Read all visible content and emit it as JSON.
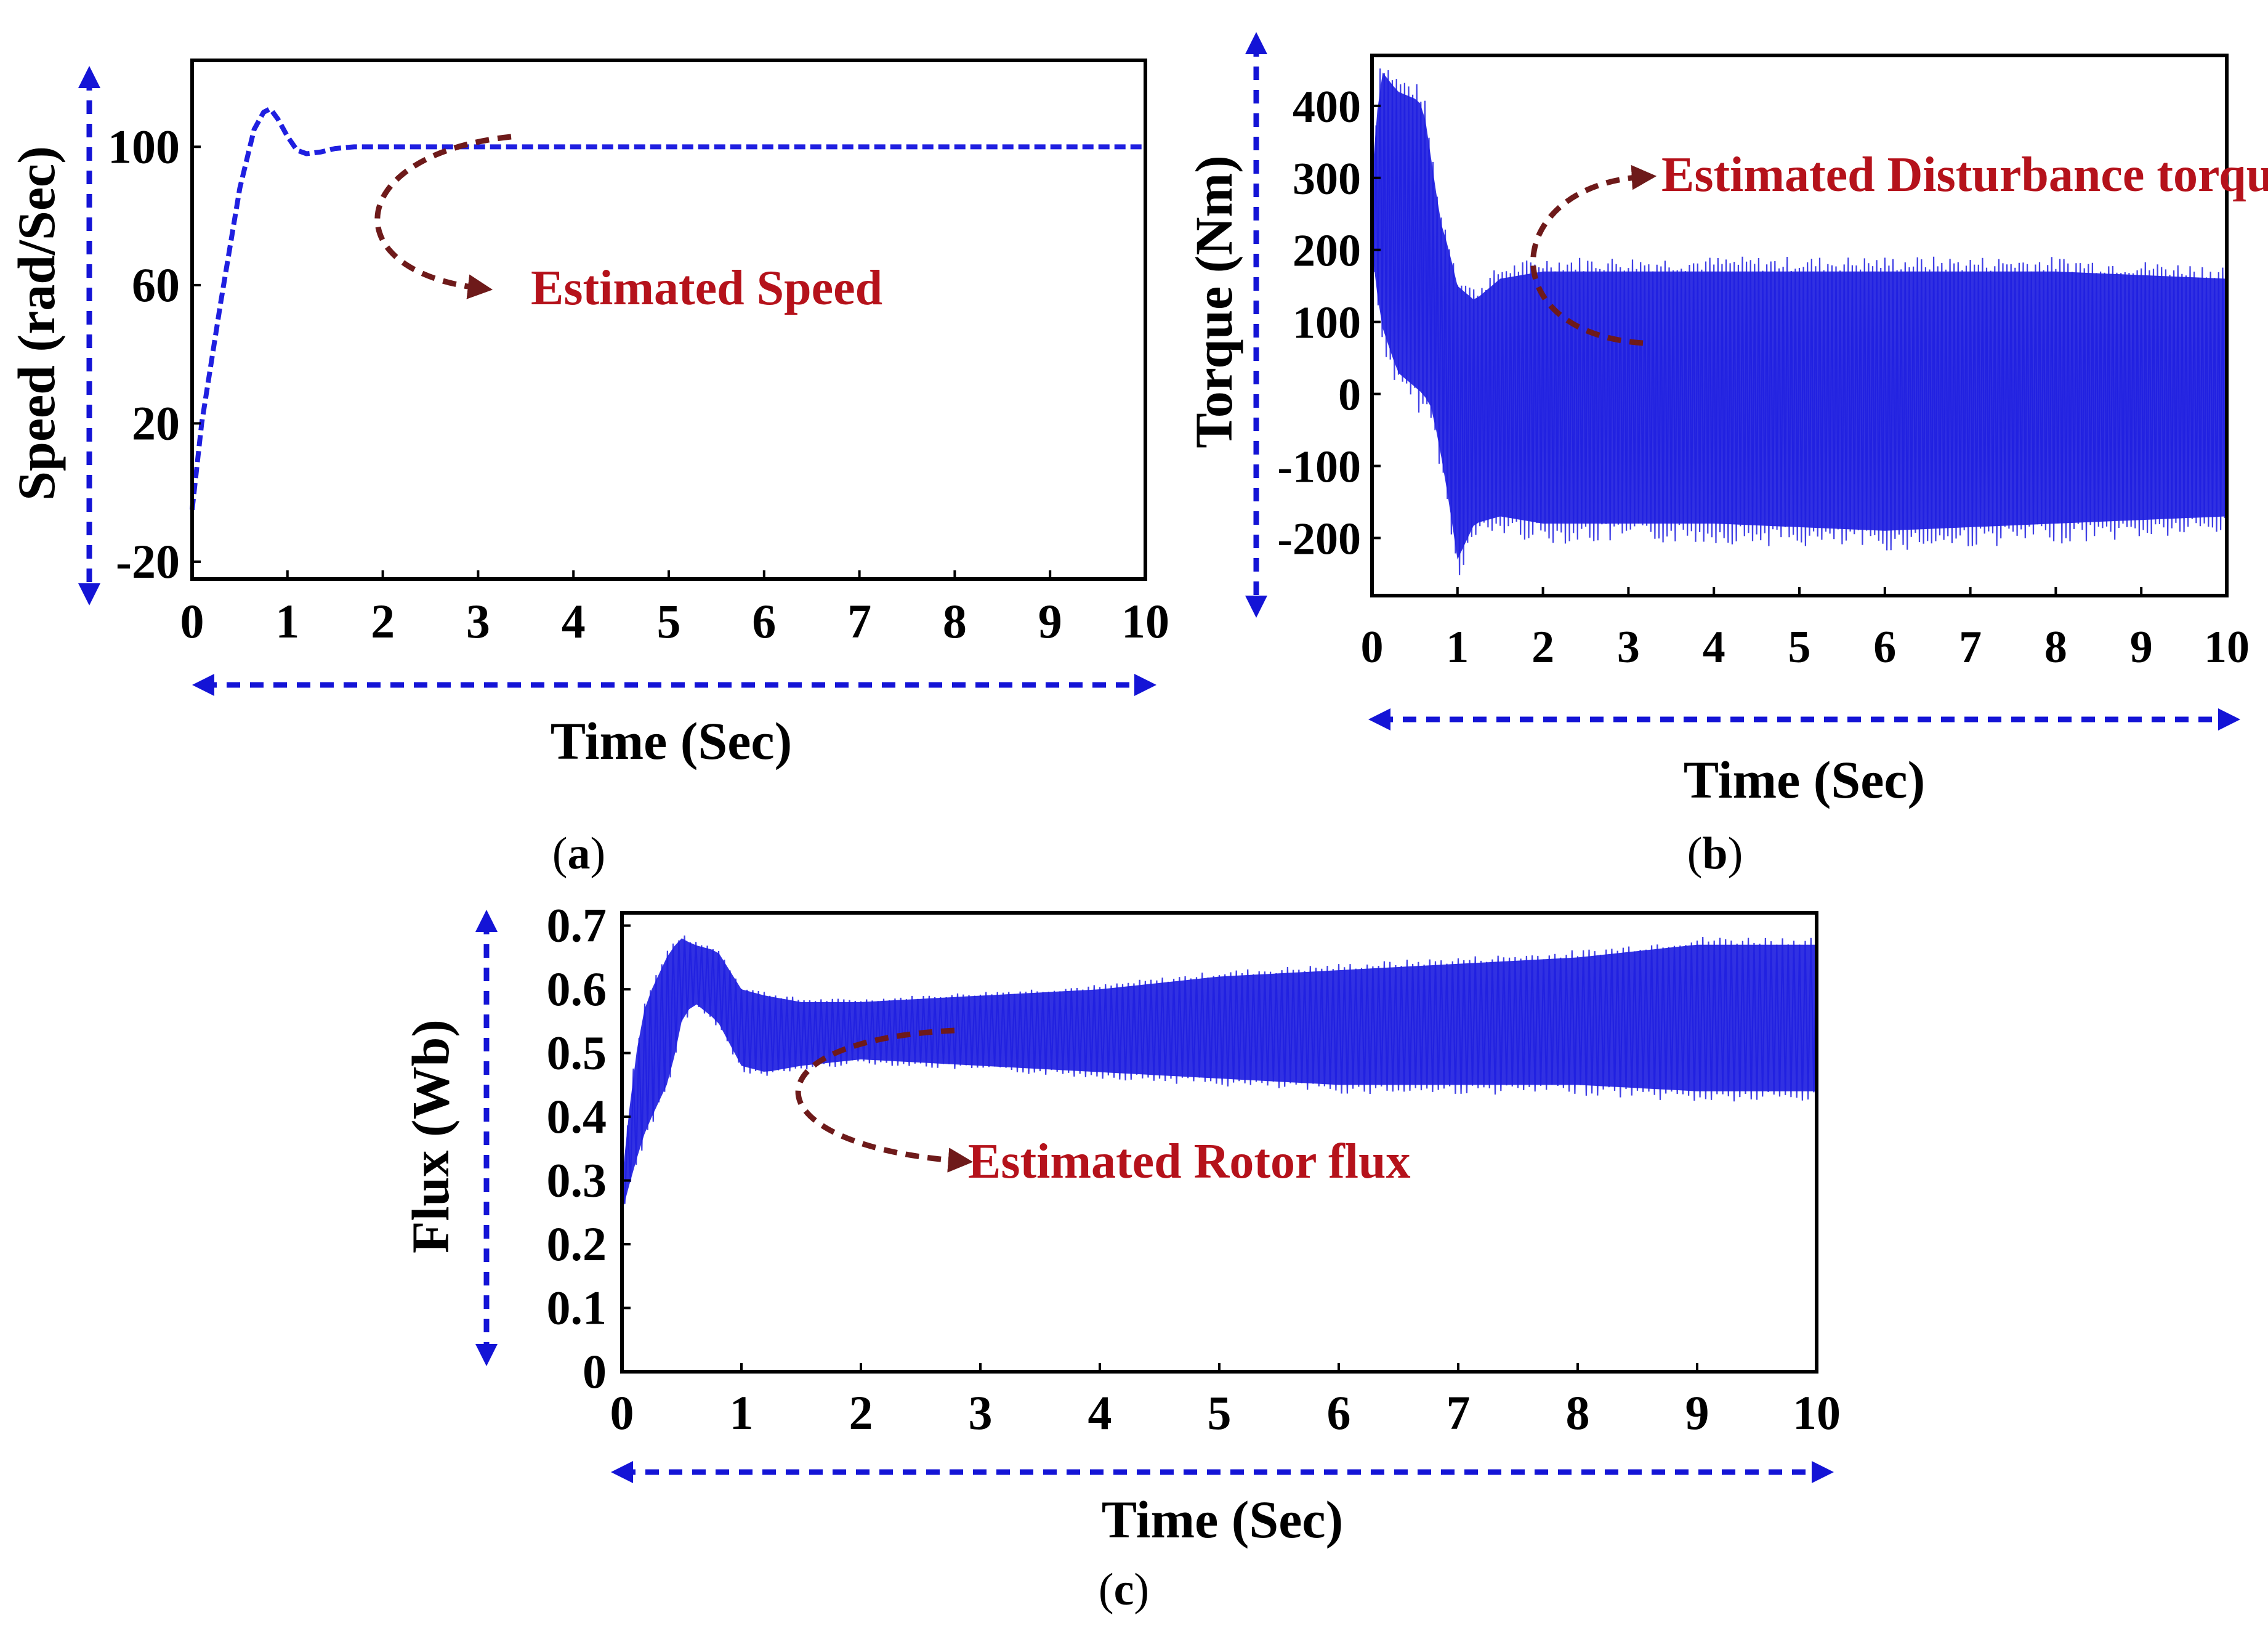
{
  "colors": {
    "series": "#1f1fe0",
    "arrow": "#1414d6",
    "annotation_text": "#b5121b",
    "annotation_curve": "#6e1a1a",
    "frame": "#000000"
  },
  "chart_data": [
    {
      "id": "a",
      "type": "line",
      "panel_label": "a",
      "ylabel": "Speed (rad/Sec)",
      "xlabel": "Time (Sec)",
      "xlim": [
        0,
        10
      ],
      "ylim": [
        -25,
        125
      ],
      "x_ticks": [
        0,
        1,
        2,
        3,
        4,
        5,
        6,
        7,
        8,
        9,
        10
      ],
      "y_ticks": [
        -20,
        20,
        60,
        100
      ],
      "annotation": "Estimated Speed",
      "series": [
        {
          "name": "Estimated Speed",
          "style": "dashed",
          "x": [
            0,
            0.1,
            0.3,
            0.5,
            0.65,
            0.75,
            0.82,
            0.9,
            1.0,
            1.1,
            1.2,
            1.35,
            1.5,
            1.7,
            2.0,
            3.0,
            4.0,
            5.0,
            6.0,
            7.0,
            8.0,
            9.0,
            10.0
          ],
          "y": [
            -5,
            20,
            55,
            88,
            105,
            110,
            111,
            108,
            103,
            99,
            98,
            98.5,
            99.5,
            100,
            100,
            100,
            100,
            100,
            100,
            100,
            100,
            100,
            100
          ]
        }
      ]
    },
    {
      "id": "b",
      "type": "line",
      "panel_label": "b",
      "ylabel": "Torque (Nm)",
      "xlabel": "Time (Sec)",
      "xlim": [
        0,
        10
      ],
      "ylim": [
        -280,
        470
      ],
      "x_ticks": [
        0,
        1,
        2,
        3,
        4,
        5,
        6,
        7,
        8,
        9,
        10
      ],
      "y_ticks": [
        -200,
        -100,
        0,
        100,
        200,
        300,
        400
      ],
      "annotation": "Estimated Disturbance torque",
      "series": [
        {
          "name": "Estimated Disturbance torque",
          "style": "oscillatory",
          "x": [
            0,
            0.1,
            0.3,
            0.5,
            0.6,
            0.7,
            0.8,
            0.9,
            1.0,
            1.2,
            1.5,
            2.0,
            4.0,
            6.0,
            8.0,
            10.0
          ],
          "upper": [
            300,
            450,
            420,
            410,
            400,
            320,
            240,
            200,
            150,
            130,
            160,
            170,
            170,
            170,
            170,
            160
          ],
          "lower": [
            200,
            100,
            30,
            10,
            0,
            -20,
            -80,
            -150,
            -230,
            -180,
            -170,
            -180,
            -180,
            -190,
            -180,
            -170
          ]
        }
      ]
    },
    {
      "id": "c",
      "type": "line",
      "panel_label": "c",
      "ylabel": "Flux (Wb)",
      "xlabel": "Time (Sec)",
      "xlim": [
        0,
        10
      ],
      "ylim": [
        0,
        0.72
      ],
      "x_ticks": [
        0,
        1,
        2,
        3,
        4,
        5,
        6,
        7,
        8,
        9,
        10
      ],
      "y_ticks": [
        0,
        0.1,
        0.2,
        0.3,
        0.4,
        0.5,
        0.6,
        0.7
      ],
      "annotation": "Estimated Rotor flux",
      "series": [
        {
          "name": "Estimated Rotor flux",
          "style": "oscillatory",
          "x": [
            0,
            0.1,
            0.2,
            0.3,
            0.4,
            0.5,
            0.6,
            0.8,
            1.0,
            1.2,
            1.5,
            2.0,
            3.0,
            4.0,
            5.0,
            6.0,
            7.0,
            8.0,
            9.0,
            10.0
          ],
          "upper": [
            0.3,
            0.48,
            0.58,
            0.62,
            0.66,
            0.68,
            0.67,
            0.66,
            0.6,
            0.59,
            0.58,
            0.58,
            0.59,
            0.6,
            0.62,
            0.63,
            0.64,
            0.65,
            0.67,
            0.67
          ],
          "lower": [
            0.25,
            0.32,
            0.38,
            0.42,
            0.46,
            0.55,
            0.58,
            0.55,
            0.48,
            0.47,
            0.48,
            0.49,
            0.48,
            0.47,
            0.46,
            0.45,
            0.45,
            0.45,
            0.44,
            0.44
          ]
        }
      ]
    }
  ]
}
